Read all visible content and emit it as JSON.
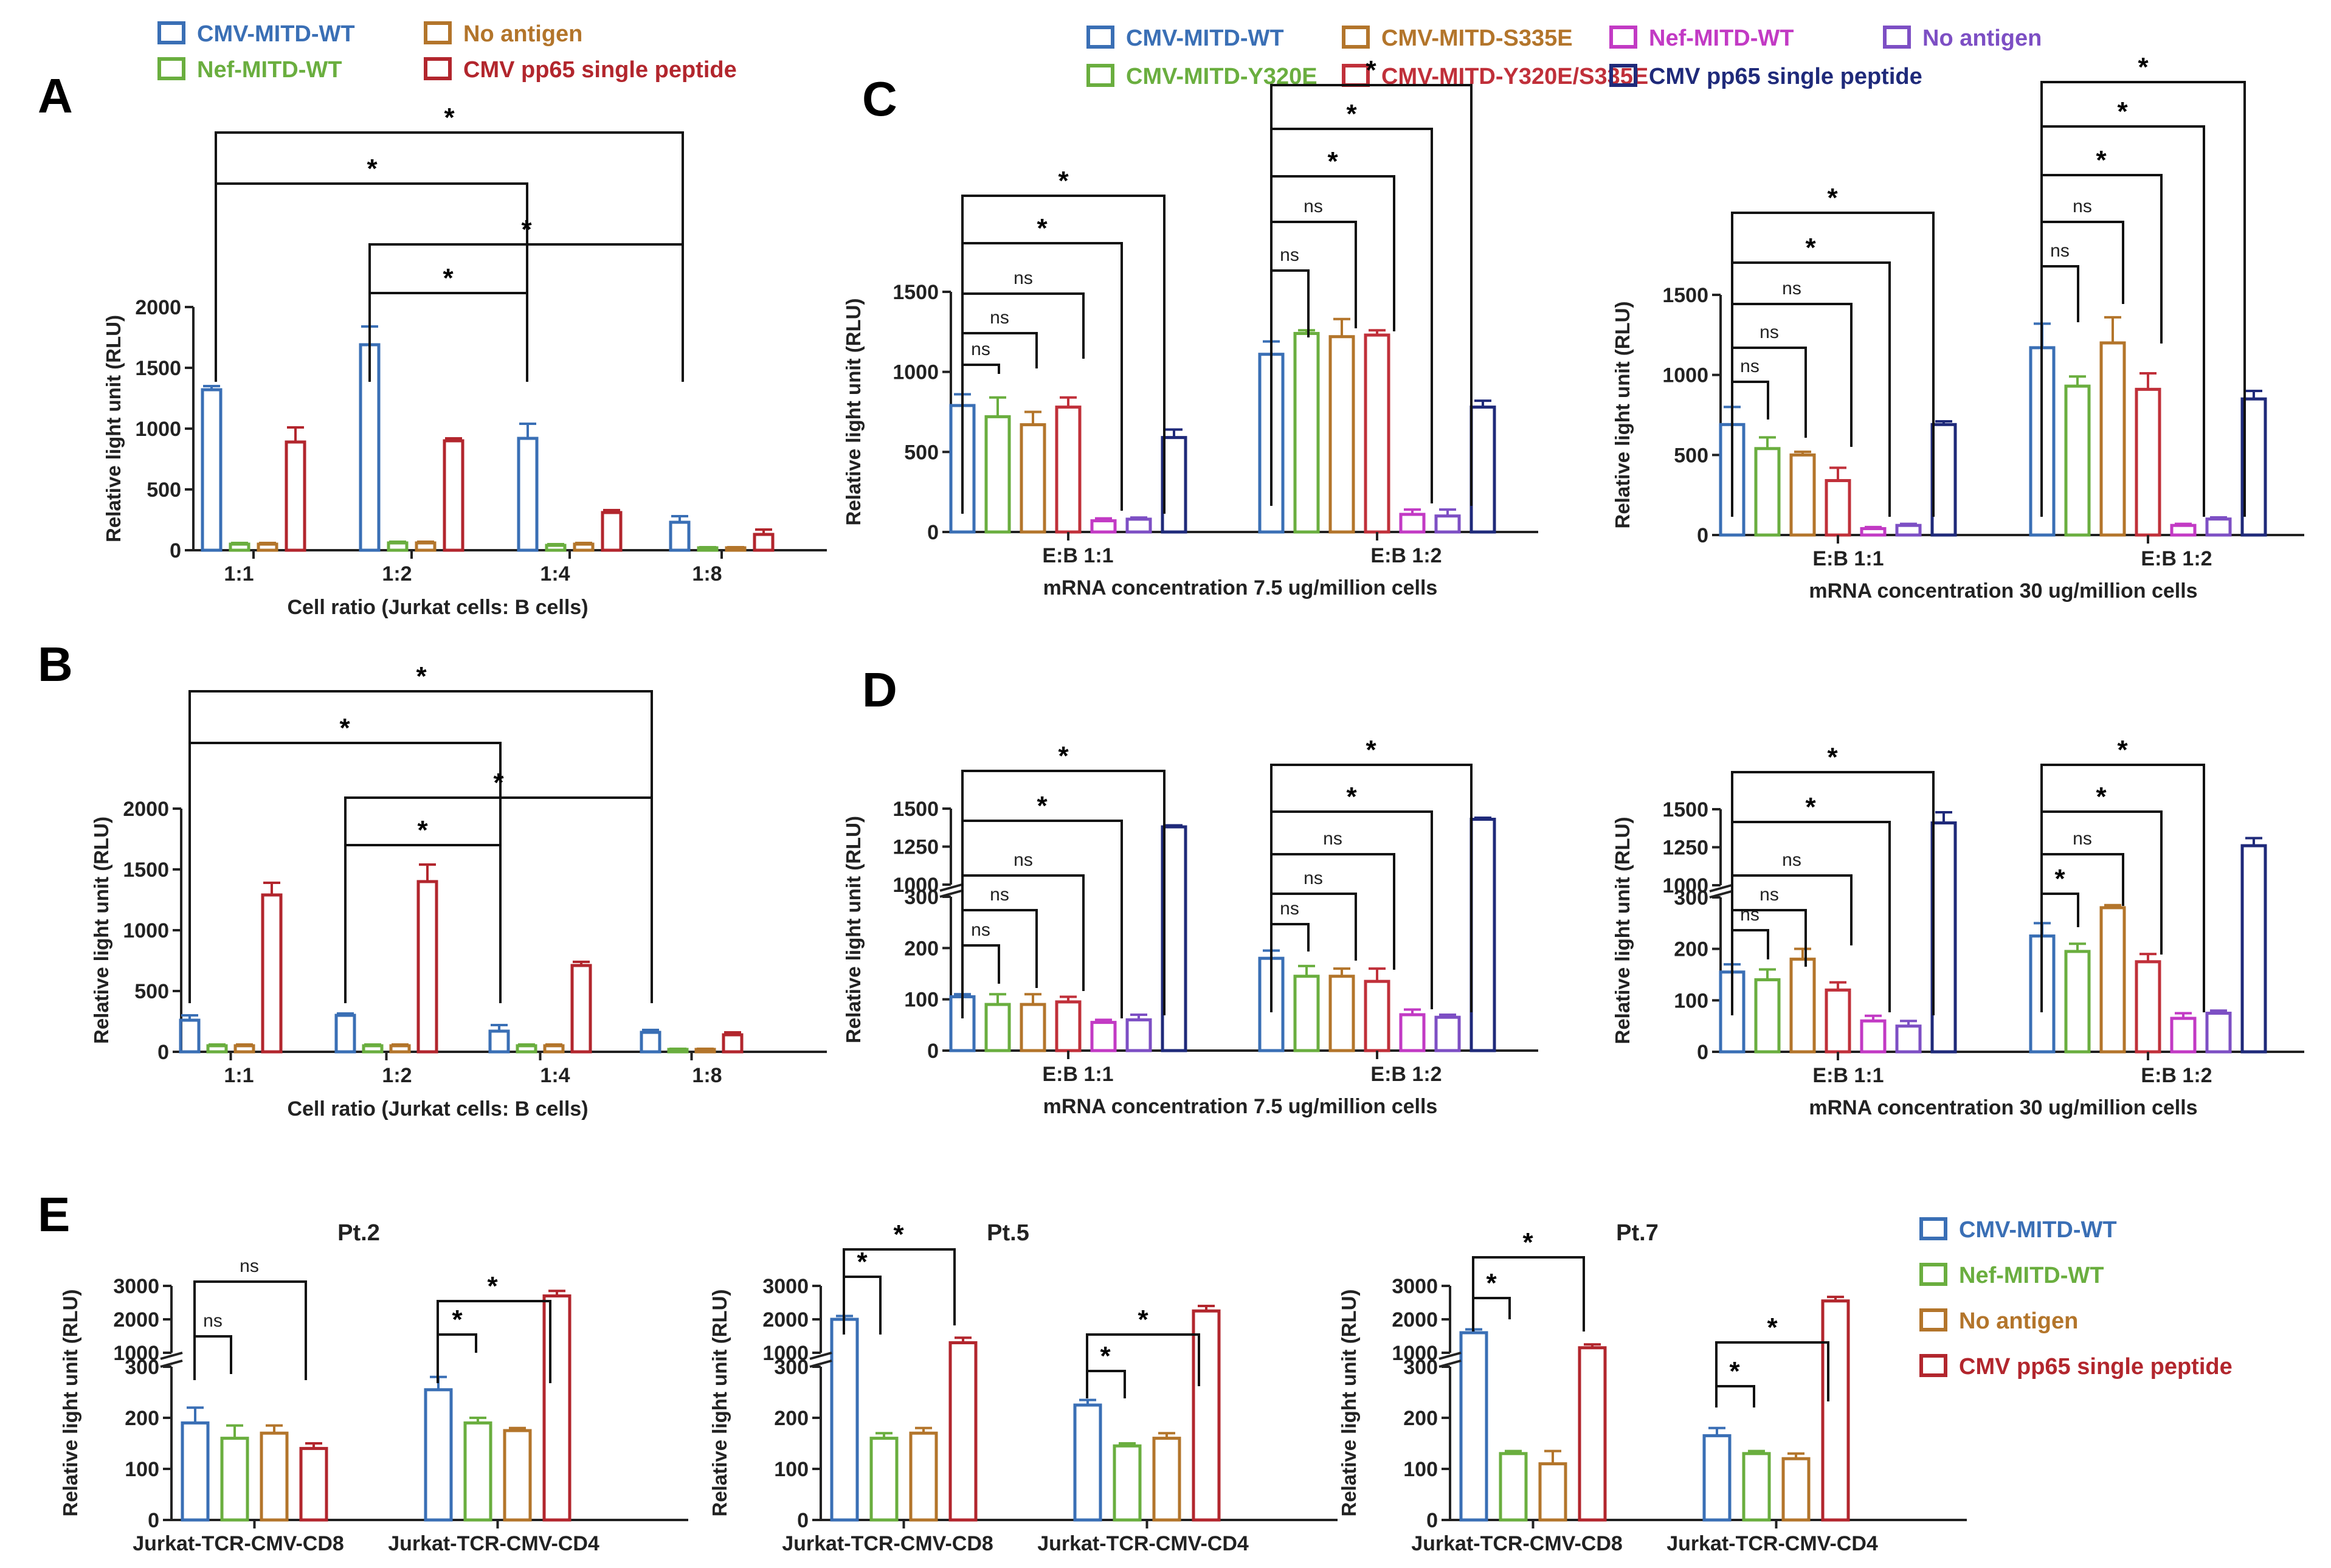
{
  "colors": {
    "cmv_wt": "#3a6fb5",
    "nef_wt": "#6aae3f",
    "no_antigen": "#b3752b",
    "cmv_peptide": "#b2262d",
    "y320e": "#6aae3f",
    "s335e": "#b3752b",
    "y320e_s335e": "#c0303a",
    "nef_mitd": "#c23ac4",
    "no_antigen_purple": "#7d4fc4",
    "pp65_navy": "#1f2a7a"
  },
  "legends": {
    "ab": [
      "CMV-MITD-WT",
      "Nef-MITD-WT",
      "No antigen",
      "CMV pp65 single peptide"
    ],
    "cd": [
      "CMV-MITD-WT",
      "CMV-MITD-Y320E",
      "CMV-MITD-S335E",
      "CMV-MITD-Y320E/S335E",
      "Nef-MITD-WT",
      "No antigen",
      "CMV pp65 single peptide"
    ],
    "e": [
      "CMV-MITD-WT",
      "Nef-MITD-WT",
      "No antigen",
      "CMV pp65 single peptide"
    ]
  },
  "chart_data": [
    {
      "panel": "A",
      "type": "bar",
      "ylabel": "Relative light unit (RLU)",
      "xlabel": "Cell ratio (Jurkat cells: B cells)",
      "categories": [
        "1:1",
        "1:2",
        "1:4",
        "1:8"
      ],
      "ylim": [
        0,
        2000
      ],
      "yticks": [
        0,
        500,
        1000,
        1500,
        2000
      ],
      "series": [
        {
          "name": "CMV-MITD-WT",
          "values": [
            1320,
            1690,
            920,
            230
          ],
          "errors": [
            30,
            150,
            120,
            50
          ]
        },
        {
          "name": "Nef-MITD-WT",
          "values": [
            50,
            60,
            40,
            20
          ],
          "errors": [
            10,
            10,
            10,
            5
          ]
        },
        {
          "name": "No antigen",
          "values": [
            50,
            60,
            50,
            20
          ],
          "errors": [
            10,
            10,
            10,
            5
          ]
        },
        {
          "name": "CMV pp65 single peptide",
          "values": [
            890,
            900,
            310,
            130
          ],
          "errors": [
            120,
            20,
            20,
            40
          ]
        }
      ],
      "annotations": [
        {
          "text": "*",
          "from": "1:1 CMV-MITD-WT",
          "to": "1:8 CMV-MITD-WT"
        },
        {
          "text": "*",
          "from": "1:1 CMV-MITD-WT",
          "to": "1:4 CMV-MITD-WT"
        },
        {
          "text": "*",
          "from": "1:2 CMV-MITD-WT",
          "to": "1:8 CMV-MITD-WT"
        },
        {
          "text": "*",
          "from": "1:2 CMV-MITD-WT",
          "to": "1:4 CMV-MITD-WT"
        }
      ]
    },
    {
      "panel": "B",
      "type": "bar",
      "ylabel": "Relative light unit (RLU)",
      "xlabel": "Cell ratio (Jurkat cells: B cells)",
      "categories": [
        "1:1",
        "1:2",
        "1:4",
        "1:8"
      ],
      "ylim": [
        0,
        2000
      ],
      "yticks": [
        0,
        500,
        1000,
        1500,
        2000
      ],
      "series": [
        {
          "name": "CMV-MITD-WT",
          "values": [
            260,
            300,
            170,
            160
          ],
          "errors": [
            40,
            15,
            50,
            20
          ]
        },
        {
          "name": "Nef-MITD-WT",
          "values": [
            50,
            50,
            50,
            20
          ],
          "errors": [
            10,
            10,
            10,
            5
          ]
        },
        {
          "name": "No antigen",
          "values": [
            50,
            50,
            50,
            20
          ],
          "errors": [
            10,
            10,
            10,
            5
          ]
        },
        {
          "name": "CMV pp65 single peptide",
          "values": [
            1290,
            1400,
            710,
            140
          ],
          "errors": [
            100,
            140,
            30,
            20
          ]
        }
      ],
      "annotations": [
        {
          "text": "*",
          "from": "1:1 CMV-MITD-WT",
          "to": "1:8 CMV-MITD-WT"
        },
        {
          "text": "*",
          "from": "1:1 CMV-MITD-WT",
          "to": "1:4 CMV-MITD-WT"
        },
        {
          "text": "*",
          "from": "1:2 CMV-MITD-WT",
          "to": "1:8 CMV-MITD-WT"
        },
        {
          "text": "*",
          "from": "1:2 CMV-MITD-WT",
          "to": "1:4 CMV-MITD-WT"
        }
      ]
    },
    {
      "panel": "C-left",
      "type": "bar",
      "ylabel": "Relative light unit (RLU)",
      "xlabel": "mRNA concentration 7.5 ug/million cells",
      "categories": [
        "E:B 1:1",
        "E:B 1:2"
      ],
      "ylim": [
        0,
        1500
      ],
      "yticks": [
        0,
        500,
        1000,
        1500
      ],
      "series": [
        {
          "name": "CMV-MITD-WT",
          "values": [
            790,
            1110
          ],
          "errors": [
            70,
            80
          ]
        },
        {
          "name": "CMV-MITD-Y320E",
          "values": [
            720,
            1240
          ],
          "errors": [
            120,
            20
          ]
        },
        {
          "name": "CMV-MITD-S335E",
          "values": [
            670,
            1220
          ],
          "errors": [
            80,
            110
          ]
        },
        {
          "name": "CMV-MITD-Y320E/S335E",
          "values": [
            780,
            1230
          ],
          "errors": [
            60,
            30
          ]
        },
        {
          "name": "Nef-MITD-WT",
          "values": [
            70,
            110
          ],
          "errors": [
            15,
            30
          ]
        },
        {
          "name": "No antigen",
          "values": [
            80,
            100
          ],
          "errors": [
            10,
            40
          ]
        },
        {
          "name": "CMV pp65 single peptide",
          "values": [
            590,
            780
          ],
          "errors": [
            50,
            40
          ]
        }
      ],
      "annotations": [
        "ns",
        "ns",
        "ns",
        "*",
        "*"
      ]
    },
    {
      "panel": "C-right",
      "type": "bar",
      "ylabel": "Relative light unit (RLU)",
      "xlabel": "mRNA concentration 30 ug/million cells",
      "categories": [
        "E:B 1:1",
        "E:B 1:2"
      ],
      "ylim": [
        0,
        1500
      ],
      "yticks": [
        0,
        500,
        1000,
        1500
      ],
      "series": [
        {
          "name": "CMV-MITD-WT",
          "values": [
            690,
            1170
          ],
          "errors": [
            110,
            150
          ]
        },
        {
          "name": "CMV-MITD-Y320E",
          "values": [
            540,
            930
          ],
          "errors": [
            70,
            60
          ]
        },
        {
          "name": "CMV-MITD-S335E",
          "values": [
            500,
            1200
          ],
          "errors": [
            20,
            160
          ]
        },
        {
          "name": "CMV-MITD-Y320E/S335E",
          "values": [
            340,
            910
          ],
          "errors": [
            80,
            100
          ]
        },
        {
          "name": "Nef-MITD-WT",
          "values": [
            40,
            60
          ],
          "errors": [
            10,
            10
          ]
        },
        {
          "name": "No antigen",
          "values": [
            60,
            100
          ],
          "errors": [
            10,
            10
          ]
        },
        {
          "name": "CMV pp65 single peptide",
          "values": [
            690,
            850
          ],
          "errors": [
            20,
            50
          ]
        }
      ],
      "annotations": [
        "ns",
        "ns",
        "ns",
        "*",
        "*"
      ]
    },
    {
      "panel": "D-left",
      "type": "bar",
      "broken_axis": true,
      "ylabel": "Relative light unit (RLU)",
      "xlabel": "mRNA concentration 7.5 ug/million cells",
      "categories": [
        "E:B 1:1",
        "E:B 1:2"
      ],
      "yticks_lower": [
        0,
        100,
        200,
        300
      ],
      "yticks_upper": [
        1000,
        1250,
        1500
      ],
      "series": [
        {
          "name": "CMV-MITD-WT",
          "values": [
            105,
            180
          ],
          "errors": [
            5,
            15
          ]
        },
        {
          "name": "CMV-MITD-Y320E",
          "values": [
            90,
            145
          ],
          "errors": [
            20,
            20
          ]
        },
        {
          "name": "CMV-MITD-S335E",
          "values": [
            90,
            145
          ],
          "errors": [
            20,
            15
          ]
        },
        {
          "name": "CMV-MITD-Y320E/S335E",
          "values": [
            95,
            135
          ],
          "errors": [
            10,
            25
          ]
        },
        {
          "name": "Nef-MITD-WT",
          "values": [
            55,
            70
          ],
          "errors": [
            5,
            10
          ]
        },
        {
          "name": "No antigen",
          "values": [
            60,
            65
          ],
          "errors": [
            10,
            5
          ]
        },
        {
          "name": "CMV pp65 single peptide",
          "values": [
            1380,
            1430
          ],
          "errors": [
            10,
            10
          ]
        }
      ],
      "annotations": [
        "ns",
        "ns",
        "ns",
        "*",
        "*"
      ]
    },
    {
      "panel": "D-right",
      "type": "bar",
      "broken_axis": true,
      "ylabel": "Relative light unit (RLU)",
      "xlabel": "mRNA concentration 30 ug/million cells",
      "categories": [
        "E:B 1:1",
        "E:B 1:2"
      ],
      "yticks_lower": [
        0,
        100,
        200,
        300
      ],
      "yticks_upper": [
        1000,
        1250,
        1500
      ],
      "series": [
        {
          "name": "CMV-MITD-WT",
          "values": [
            155,
            225
          ],
          "errors": [
            15,
            25
          ]
        },
        {
          "name": "CMV-MITD-Y320E",
          "values": [
            140,
            195
          ],
          "errors": [
            20,
            15
          ]
        },
        {
          "name": "CMV-MITD-S335E",
          "values": [
            180,
            280
          ],
          "errors": [
            20,
            5
          ]
        },
        {
          "name": "CMV-MITD-Y320E/S335E",
          "values": [
            120,
            175
          ],
          "errors": [
            15,
            15
          ]
        },
        {
          "name": "Nef-MITD-WT",
          "values": [
            60,
            65
          ],
          "errors": [
            10,
            10
          ]
        },
        {
          "name": "No antigen",
          "values": [
            50,
            75
          ],
          "errors": [
            10,
            5
          ]
        },
        {
          "name": "CMV pp65 single peptide",
          "values": [
            1410,
            1260
          ],
          "errors": [
            70,
            50
          ]
        }
      ],
      "annotations": [
        "ns",
        "ns",
        "ns",
        "*",
        "*",
        "*"
      ]
    },
    {
      "panel": "E-Pt.2",
      "type": "bar",
      "broken_axis": true,
      "title": "Pt.2",
      "ylabel": "Relative light unit (RLU)",
      "categories": [
        "Jurkat-TCR-CMV-CD8",
        "Jurkat-TCR-CMV-CD4"
      ],
      "yticks_lower": [
        0,
        100,
        200,
        300
      ],
      "yticks_upper": [
        1000,
        2000,
        3000
      ],
      "series": [
        {
          "name": "CMV-MITD-WT",
          "values": [
            190,
            255
          ],
          "errors": [
            30,
            25
          ]
        },
        {
          "name": "Nef-MITD-WT",
          "values": [
            160,
            190
          ],
          "errors": [
            25,
            10
          ]
        },
        {
          "name": "No antigen",
          "values": [
            170,
            175
          ],
          "errors": [
            15,
            5
          ]
        },
        {
          "name": "CMV pp65 single peptide",
          "values": [
            140,
            2700
          ],
          "errors": [
            10,
            150
          ]
        }
      ],
      "annotations": [
        "ns",
        "ns",
        "*",
        "*"
      ]
    },
    {
      "panel": "E-Pt.5",
      "type": "bar",
      "broken_axis": true,
      "title": "Pt.5",
      "ylabel": "Relative light unit (RLU)",
      "categories": [
        "Jurkat-TCR-CMV-CD8",
        "Jurkat-TCR-CMV-CD4"
      ],
      "yticks_lower": [
        0,
        100,
        200,
        300
      ],
      "yticks_upper": [
        1000,
        2000,
        3000
      ],
      "series": [
        {
          "name": "CMV-MITD-WT",
          "values": [
            2000,
            225
          ],
          "errors": [
            100,
            10
          ]
        },
        {
          "name": "Nef-MITD-WT",
          "values": [
            160,
            145
          ],
          "errors": [
            10,
            5
          ]
        },
        {
          "name": "No antigen",
          "values": [
            170,
            160
          ],
          "errors": [
            10,
            10
          ]
        },
        {
          "name": "CMV pp65 single peptide",
          "values": [
            1300,
            2250
          ],
          "errors": [
            150,
            150
          ]
        }
      ],
      "annotations": [
        "*",
        "*",
        "*",
        "*"
      ]
    },
    {
      "panel": "E-Pt.7",
      "type": "bar",
      "broken_axis": true,
      "title": "Pt.7",
      "ylabel": "Relative light unit (RLU)",
      "categories": [
        "Jurkat-TCR-CMV-CD8",
        "Jurkat-TCR-CMV-CD4"
      ],
      "yticks_lower": [
        0,
        100,
        200,
        300
      ],
      "yticks_upper": [
        1000,
        2000,
        3000
      ],
      "series": [
        {
          "name": "CMV-MITD-WT",
          "values": [
            1600,
            165
          ],
          "errors": [
            100,
            15
          ]
        },
        {
          "name": "Nef-MITD-WT",
          "values": [
            130,
            130
          ],
          "errors": [
            5,
            5
          ]
        },
        {
          "name": "No antigen",
          "values": [
            110,
            120
          ],
          "errors": [
            25,
            10
          ]
        },
        {
          "name": "CMV pp65 single peptide",
          "values": [
            1150,
            2550
          ],
          "errors": [
            100,
            120
          ]
        }
      ],
      "annotations": [
        "*",
        "*",
        "*",
        "*"
      ]
    }
  ],
  "panel_letters": [
    "A",
    "B",
    "C",
    "D",
    "E"
  ],
  "tick_labels": {
    "ab_y": [
      "0",
      "500",
      "1000",
      "1500",
      "2000"
    ],
    "c_y": [
      "0",
      "500",
      "1000",
      "1500"
    ],
    "d_y_lower": [
      "0",
      "100",
      "200",
      "300"
    ],
    "d_y_upper": [
      "1000",
      "1250",
      "1500"
    ],
    "e_y_lower": [
      "0",
      "100",
      "200",
      "300"
    ],
    "e_y_upper": [
      "1000",
      "2000",
      "3000"
    ]
  },
  "significance": {
    "star": "*",
    "ns": "ns"
  }
}
